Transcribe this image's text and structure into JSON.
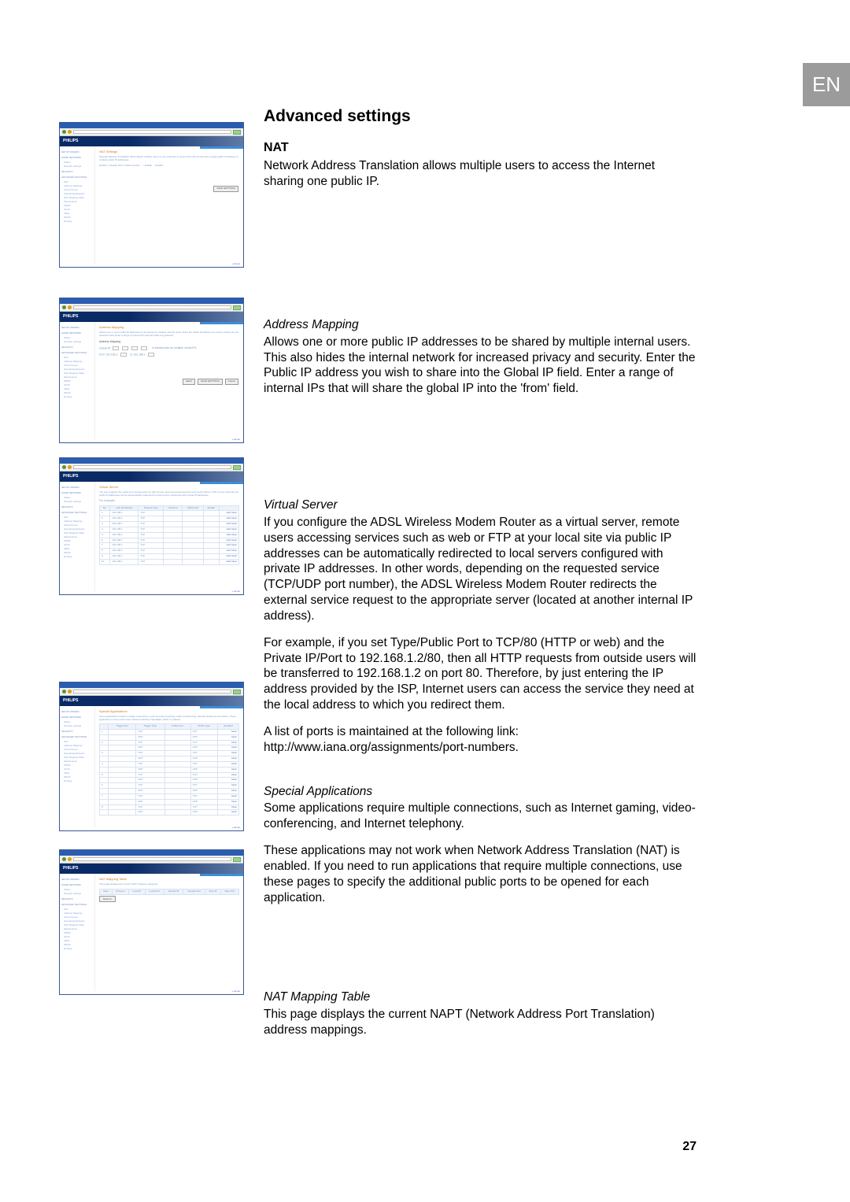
{
  "lang_tab": "EN",
  "page_number": "27",
  "headings": {
    "main": "Advanced settings",
    "nat": "NAT",
    "addr_map": "Address Mapping",
    "vserver": "Virtual Server",
    "spec_app": "Special Applications",
    "map_table": "NAT Mapping Table"
  },
  "text": {
    "nat_p": "Network Address Translation allows multiple users to access the Internet sharing one public IP.",
    "addr_map_p": "Allows one or more public IP addresses to be shared by multiple internal users. This also hides the internal network for increased privacy and security. Enter the Public IP address you wish to share into the Global IP field. Enter a range of internal IPs that will share the global IP into the 'from' field.",
    "vserver_p1": "If you configure the ADSL Wireless Modem Router as a virtual server, remote users accessing services such as web or FTP at your local site via public IP addresses can be automatically redirected to local servers configured with private IP addresses. In other words, depending on the requested service (TCP/UDP port number), the ADSL Wireless Modem Router redirects the external service request to the appropriate server (located at another internal IP address).",
    "vserver_p2": "For example, if you set Type/Public Port to TCP/80 (HTTP or web) and the Private IP/Port to 192.168.1.2/80, then all HTTP requests from outside users will be transferred to 192.168.1.2 on port 80. Therefore, by just entering the IP address provided by the ISP, Internet users can access the service they need at the local address to which you redirect them.",
    "vserver_p3a": "A list of ports is maintained at the following link:",
    "vserver_p3b": "http://www.iana.org/assignments/port-numbers.",
    "spec_app_p1": "Some applications require multiple connections, such as Internet gaming, video-conferencing, and Internet telephony.",
    "spec_app_p2": "These applications may not work when Network Address Translation (NAT) is enabled. If you need to run applications that require multiple connections, use these pages to specify the additional public ports to be opened for each application.",
    "map_table_p": "This page displays the current NAPT (Network Address Port Translation) address mappings."
  },
  "thumb": {
    "brand": "PHILIPS",
    "sidebar": {
      "groups": [
        "SETUP WIZARD",
        "HOME NETWORK",
        "SECURITY",
        "ADVANCED SETTINGS"
      ],
      "home_items": [
        "Status",
        "Network settings"
      ],
      "adv_items": [
        "NAT",
        "Address Mapping",
        "Virtual Server",
        "Special Applications",
        "NAT Mapping Table",
        "Maintenance",
        "SNMP",
        "UPnP",
        "ADSL",
        "DDNS",
        "Routing"
      ]
    },
    "footer_link": "» Home",
    "buttons": {
      "help": "HELP",
      "save": "SAVE SETTINGS",
      "cancel": "Cancel",
      "refresh": "Refresh"
    }
  },
  "thumb1": {
    "title": "NAT Settings"
  },
  "thumb2": {
    "title": "Address Mapping",
    "sub": "Address Mapping",
    "global_label": "Global IP:",
    "from_label": "from 192.168.1.",
    "to_label": "to 192.168.1.",
    "note": "is transformed as multiple virtual IPs"
  },
  "thumb3": {
    "title": "Virtual Server",
    "example_label": "For example:",
    "cols": [
      "No.",
      "LAN IP Address",
      "Protocol Type",
      "LAN Port",
      "Public Port",
      "Enable",
      ""
    ],
    "ip_prefix": "192.168.1.",
    "proto": "TCP",
    "rows_count": 10,
    "link_add": "Add",
    "link_clear": "Clear"
  },
  "thumb4": {
    "title": "Special Applications",
    "cols": [
      "",
      "Trigger Port",
      "Trigger Type",
      "Public Port",
      "Public Type",
      "Enabled"
    ],
    "proto": "TCP",
    "rows_count": 8,
    "link_clear": "Clear"
  },
  "thumb5": {
    "title": "NAT Mapping Table",
    "sub": "NAT Mapping Table",
    "desc": "This page displays the current NAPT address mappings.",
    "cols": [
      "Index",
      "Protocol",
      "Local IP",
      "Local Port",
      "Pseudo IP",
      "Pseudo Port",
      "Peer IP",
      "Peer Port"
    ]
  }
}
